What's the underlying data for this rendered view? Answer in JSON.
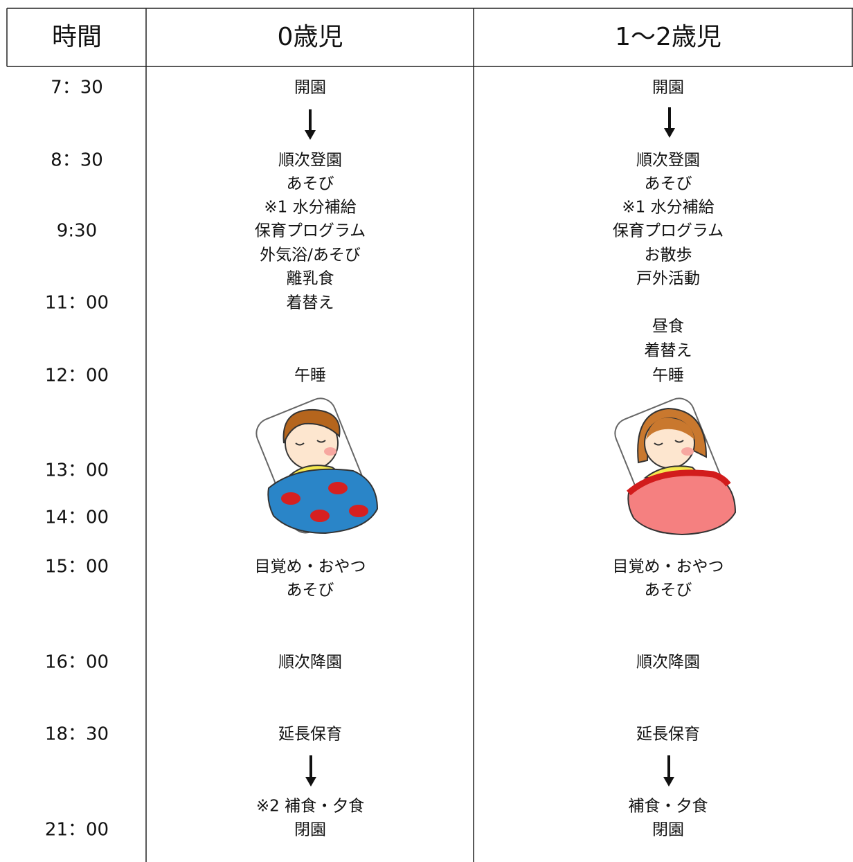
{
  "table": {
    "header": [
      "時間",
      "0歳児",
      "1〜2歳児"
    ],
    "times": [
      "7：30",
      "8：30",
      "9:30",
      "11：00",
      "12：00",
      "13：00",
      "14：00",
      "15：00",
      "16：00",
      "18：30",
      "21：00"
    ],
    "columns": [
      [
        "開園",
        "順次登園",
        "あそび",
        "※1 水分補給",
        "保育プログラム",
        "外気浴/あそび",
        "離乳食",
        "着替え",
        "午睡",
        "目覚め・おやつ",
        "あそび",
        "順次降園",
        "延長保育",
        "※2 補食・夕食",
        "閉園"
      ],
      [
        "開園",
        "順次登園",
        "あそび",
        "※1 水分補給",
        "保育プログラム",
        "お散歩",
        "戸外活動",
        "昼食",
        "着替え",
        "午睡",
        "目覚め・おやつ",
        "あそび",
        "順次降園",
        "延長保育",
        "補食・夕食",
        "閉園"
      ]
    ]
  }
}
